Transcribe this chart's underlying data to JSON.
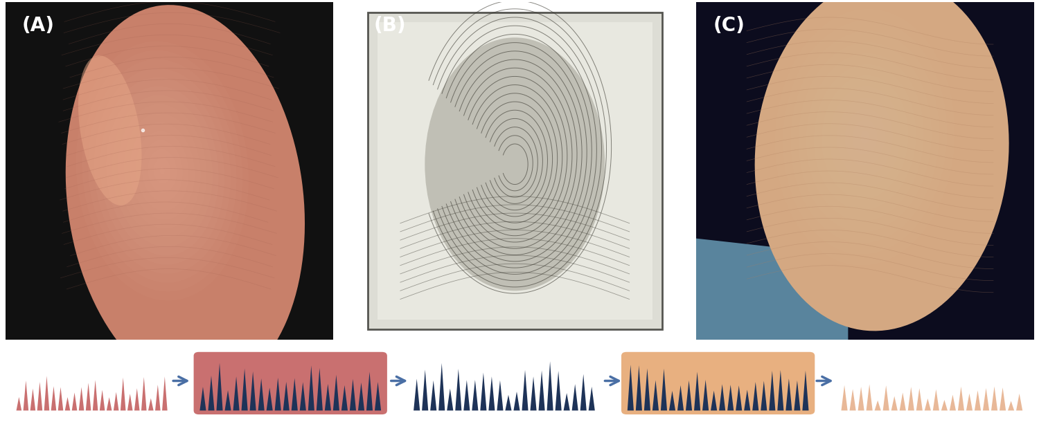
{
  "fig_width": 15.0,
  "fig_height": 6.1,
  "dpi": 100,
  "bg_color": "#ffffff",
  "labels": [
    "(A)",
    "(B)",
    "(C)"
  ],
  "label_color": "#ffffff",
  "label_fontsize": 20,
  "label_fontweight": "bold",
  "photo_A_bg": "#111111",
  "photo_B_bg": "#d0cfc8",
  "photo_C_bg": "#0d0d1a",
  "finger_color_top": "#d4937a",
  "finger_color_mid": "#c07a60",
  "finger_color_dark": "#8a4a35",
  "phantom_color": "#c8b89a",
  "ridge_color_dark": "#1e3358",
  "ridge_color_pink": "#c97070",
  "ridge_color_light": "#e8b898",
  "arrow_color": "#4a6fa5",
  "step1_ridge_color": "#c97070",
  "step2_box_color": "#c97070",
  "step2_ridge_color": "#1e3358",
  "step3_ridge_color": "#1e3358",
  "step4_box_color": "#e8b080",
  "step4_ridge_color": "#1e3358",
  "step5_ridge_color": "#e8b898",
  "n_ridges_diagram": 22
}
